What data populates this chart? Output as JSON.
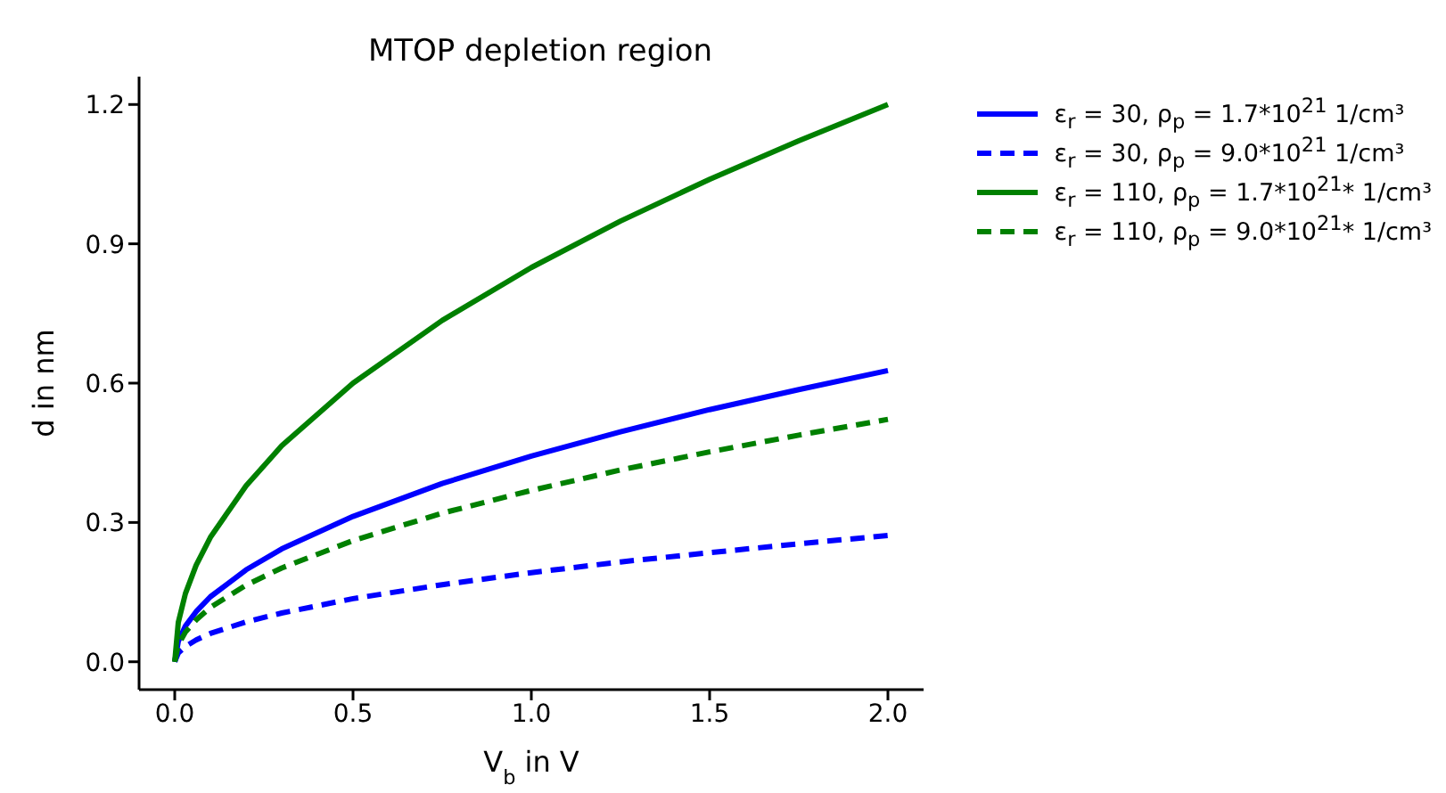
{
  "chart_data": {
    "type": "line",
    "title": "MTOP depletion region",
    "xlabel": "V$_{b}$ in V",
    "ylabel": "d in nm",
    "x": [
      0,
      0.01,
      0.03,
      0.06,
      0.1,
      0.2,
      0.3,
      0.5,
      0.75,
      1,
      1.25,
      1.5,
      1.75,
      2
    ],
    "series": [
      {
        "name": "ε$_{r}$ = 30, ρ$_{p}$ = 1.7*10$^{21}$ 1/cm³",
        "color": "#0000ff",
        "line_style": "solid",
        "values": [
          0,
          0.044,
          0.077,
          0.108,
          0.14,
          0.198,
          0.243,
          0.313,
          0.384,
          0.443,
          0.495,
          0.543,
          0.586,
          0.627
        ]
      },
      {
        "name": "ε$_{r}$ = 30, ρ$_{p}$ = 9.0*10$^{21}$ 1/cm³",
        "color": "#0000ff",
        "line_style": "dashed",
        "values": [
          0,
          0.019,
          0.033,
          0.047,
          0.061,
          0.086,
          0.105,
          0.136,
          0.166,
          0.192,
          0.215,
          0.235,
          0.254,
          0.272
        ]
      },
      {
        "name": "ε$_{r}$ = 110, ρ$_{p}$ = 1.7*10$^{21}$* 1/cm³",
        "color": "#008000",
        "line_style": "solid",
        "values": [
          0,
          0.085,
          0.147,
          0.208,
          0.268,
          0.379,
          0.465,
          0.6,
          0.735,
          0.849,
          0.949,
          1.039,
          1.122,
          1.2
        ]
      },
      {
        "name": "ε$_{r}$ = 110, ρ$_{p}$ = 9.0*10$^{21}$* 1/cm³",
        "color": "#008000",
        "line_style": "dashed",
        "values": [
          0,
          0.037,
          0.064,
          0.09,
          0.117,
          0.165,
          0.202,
          0.261,
          0.32,
          0.369,
          0.413,
          0.452,
          0.488,
          0.522
        ]
      }
    ],
    "xlim": [
      -0.1,
      2.1
    ],
    "xticks": [
      {
        "value": 0,
        "label": "0.0"
      },
      {
        "value": 0.5,
        "label": "0.5"
      },
      {
        "value": 1,
        "label": "1.0"
      },
      {
        "value": 1.5,
        "label": "1.5"
      },
      {
        "value": 2,
        "label": "2.0"
      }
    ],
    "ylim": [
      -0.06,
      1.26
    ],
    "yticks": [
      {
        "value": 0,
        "label": "0.0"
      },
      {
        "value": 0.3,
        "label": "0.3"
      },
      {
        "value": 0.6,
        "label": "0.6"
      },
      {
        "value": 0.9,
        "label": "0.9"
      },
      {
        "value": 1.2,
        "label": "1.2"
      }
    ],
    "grid": false,
    "legend": "top right",
    "marker": "none"
  }
}
